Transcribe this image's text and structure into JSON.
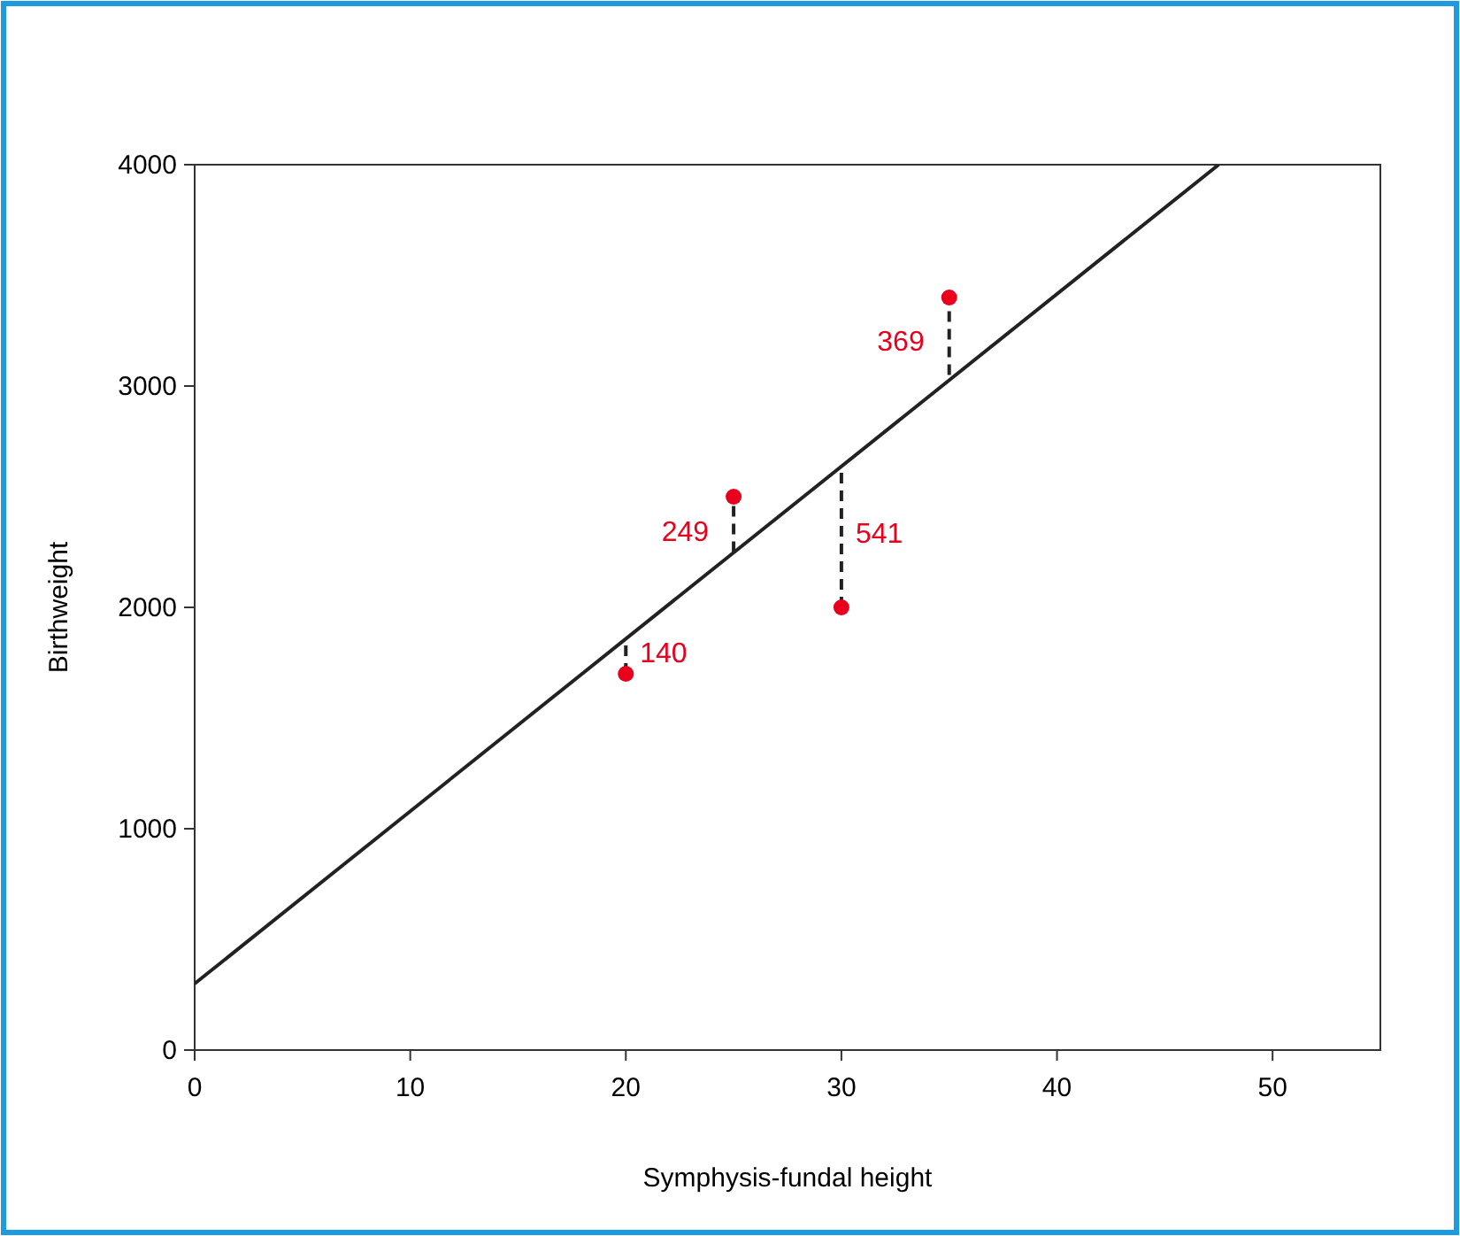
{
  "chart_data": {
    "type": "scatter",
    "xlabel": "Symphysis-fundal height",
    "ylabel": "Birthweight",
    "xlim": [
      0,
      55
    ],
    "ylim": [
      0,
      4000
    ],
    "xticks": [
      0,
      10,
      20,
      30,
      40,
      50
    ],
    "yticks": [
      0,
      1000,
      2000,
      3000,
      4000
    ],
    "grid": false,
    "series": [
      {
        "color": "#e8001c",
        "marker": "circle",
        "x": [
          20,
          25,
          30,
          35
        ],
        "values": [
          1700,
          2500,
          2000,
          3400
        ],
        "errors": [
          [
            1700,
            1850
          ],
          [
            2250,
            2500
          ],
          [
            2000,
            2620
          ],
          [
            3050,
            3400
          ]
        ],
        "line_style": "dashed"
      },
      {
        "type": "line",
        "marker": "none",
        "color": "#222222",
        "x": [
          0,
          47.5
        ],
        "values": [
          300,
          4000
        ],
        "line_style": "solid"
      }
    ],
    "annotations": [
      {
        "text": "140",
        "x": 20,
        "y": 1800
      },
      {
        "text": "249",
        "x": 25,
        "y": 2350
      },
      {
        "text": "541",
        "x": 30,
        "y": 2340
      },
      {
        "text": "369",
        "x": 35,
        "y": 3210
      }
    ]
  }
}
